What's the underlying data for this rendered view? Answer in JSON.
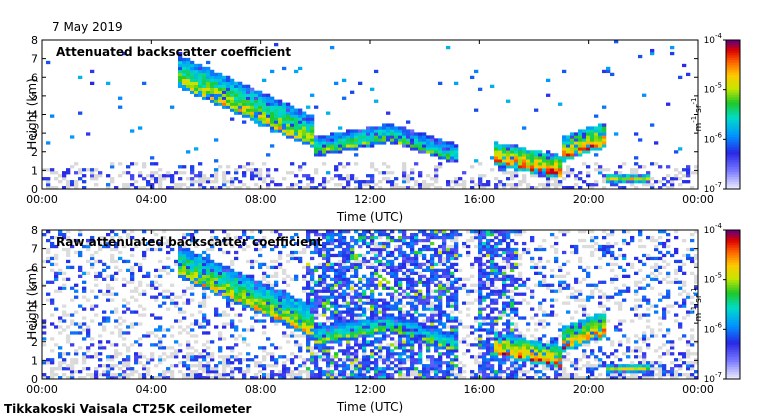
{
  "date_label": "7 May 2019",
  "footer": "Tikkakoski Vaisala CT25K ceilometer",
  "chart_data": [
    {
      "type": "heatmap",
      "title": "Attenuated backscatter coefficient",
      "xlabel": "Time (UTC)",
      "ylabel": "Height (km)",
      "xticks": [
        "00:00",
        "04:00",
        "08:00",
        "12:00",
        "16:00",
        "20:00",
        "00:00"
      ],
      "xlim_hours": [
        0,
        24
      ],
      "ylim_km": [
        0,
        8
      ],
      "yticks": [
        "0",
        "1",
        "2",
        "3",
        "4",
        "5",
        "6",
        "7",
        "8"
      ],
      "colorbar": {
        "scale": "log",
        "range": [
          1e-07,
          0.0001
        ],
        "ticks": [
          {
            "base": "10",
            "exp": "-4"
          },
          {
            "base": "10",
            "exp": "-5"
          },
          {
            "base": "10",
            "exp": "-6"
          },
          {
            "base": "10",
            "exp": "-7"
          }
        ],
        "label": "m",
        "label_exp1": "-1",
        "label_mid": " sr",
        "label_exp2": "-1"
      },
      "features": [
        {
          "name": "descending cloud layer",
          "t_start": 5.0,
          "t_end": 10.0,
          "h_start": 5.6,
          "h_end": 2.3,
          "thickness_km": 1.6,
          "intensity": 0.78
        },
        {
          "name": "mid cloud",
          "t_start": 10.0,
          "t_end": 12.6,
          "h_start": 1.9,
          "h_end": 2.6,
          "thickness_km": 0.9,
          "intensity": 0.7
        },
        {
          "name": "mid cloud",
          "t_start": 12.6,
          "t_end": 15.2,
          "h_start": 2.7,
          "h_end": 1.5,
          "thickness_km": 0.9,
          "intensity": 0.65
        },
        {
          "name": "low cloud",
          "t_start": 16.6,
          "t_end": 19.0,
          "h_start": 1.4,
          "h_end": 0.7,
          "thickness_km": 1.1,
          "intensity": 0.96
        },
        {
          "name": "low cloud",
          "t_start": 19.0,
          "t_end": 20.6,
          "h_start": 1.6,
          "h_end": 2.4,
          "thickness_km": 1.2,
          "intensity": 0.93
        },
        {
          "name": "boundary layer",
          "t_start": 20.6,
          "t_end": 22.2,
          "h_start": 0.5,
          "h_end": 0.5,
          "thickness_km": 0.25,
          "intensity": 0.85
        }
      ]
    },
    {
      "type": "heatmap",
      "title": "Raw attenuated backscatter coefficient",
      "xlabel": "Time (UTC)",
      "ylabel": "Height (km)",
      "xticks": [
        "00:00",
        "04:00",
        "08:00",
        "12:00",
        "16:00",
        "20:00",
        "00:00"
      ],
      "xlim_hours": [
        0,
        24
      ],
      "ylim_km": [
        0,
        8
      ],
      "yticks": [
        "0",
        "1",
        "2",
        "3",
        "4",
        "5",
        "6",
        "7",
        "8"
      ],
      "colorbar": {
        "scale": "log",
        "range": [
          1e-07,
          0.0001
        ],
        "ticks": [
          {
            "base": "10",
            "exp": "-4"
          },
          {
            "base": "10",
            "exp": "-5"
          },
          {
            "base": "10",
            "exp": "-6"
          },
          {
            "base": "10",
            "exp": "-7"
          }
        ],
        "label": "m",
        "label_exp1": "-1",
        "label_mid": " sr",
        "label_exp2": "-1"
      },
      "features": [
        {
          "name": "descending cloud layer",
          "t_start": 5.0,
          "t_end": 10.0,
          "h_start": 5.6,
          "h_end": 2.3,
          "thickness_km": 1.6,
          "intensity": 0.78
        },
        {
          "name": "mid cloud",
          "t_start": 10.0,
          "t_end": 12.6,
          "h_start": 1.9,
          "h_end": 2.6,
          "thickness_km": 0.9,
          "intensity": 0.7
        },
        {
          "name": "mid cloud",
          "t_start": 12.6,
          "t_end": 15.2,
          "h_start": 2.7,
          "h_end": 1.5,
          "thickness_km": 0.9,
          "intensity": 0.65
        },
        {
          "name": "low cloud",
          "t_start": 16.6,
          "t_end": 19.0,
          "h_start": 1.4,
          "h_end": 0.7,
          "thickness_km": 1.1,
          "intensity": 0.96
        },
        {
          "name": "low cloud",
          "t_start": 19.0,
          "t_end": 20.6,
          "h_start": 1.6,
          "h_end": 2.4,
          "thickness_km": 1.2,
          "intensity": 0.93
        },
        {
          "name": "boundary layer",
          "t_start": 20.6,
          "t_end": 22.2,
          "h_start": 0.5,
          "h_end": 0.5,
          "thickness_km": 0.25,
          "intensity": 0.85
        }
      ],
      "noise_bands_hours": [
        [
          9.6,
          15.2
        ],
        [
          16.0,
          17.4
        ]
      ]
    }
  ]
}
